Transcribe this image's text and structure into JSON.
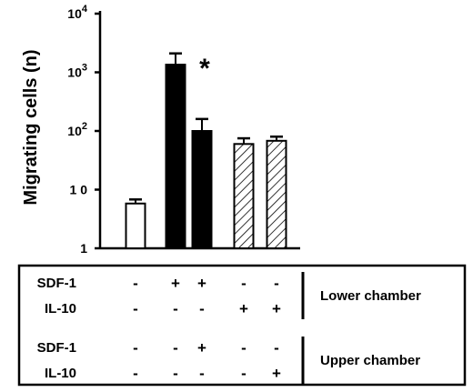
{
  "chart_data": {
    "type": "bar",
    "ylabel": "Migrating cells (n)",
    "yscale": "log",
    "ylim": [
      1,
      10000
    ],
    "yticks": [
      {
        "value": 1,
        "base": "1",
        "exp": ""
      },
      {
        "value": 10,
        "base": "1 0",
        "exp": ""
      },
      {
        "value": 100,
        "base": "10",
        "exp": "2"
      },
      {
        "value": 1000,
        "base": "10",
        "exp": "3"
      },
      {
        "value": 10000,
        "base": "10",
        "exp": "4"
      }
    ],
    "bars": [
      {
        "value": 5.8,
        "error": 6.8,
        "fill": "white"
      },
      {
        "value": 1350,
        "error": 2100,
        "fill": "black"
      },
      {
        "value": 100,
        "error": 160,
        "fill": "black"
      },
      {
        "value": 60,
        "error": 75,
        "fill": "hatched"
      },
      {
        "value": 68,
        "error": 80,
        "fill": "hatched"
      }
    ],
    "annotation": {
      "text": "*",
      "bar_index": 1
    },
    "grid": false
  },
  "conditions_table": {
    "rows": [
      {
        "label": "SDF-1",
        "symbols": [
          "-",
          "+",
          "+",
          "-",
          "-"
        ]
      },
      {
        "label": "IL-10",
        "symbols": [
          "-",
          "-",
          "-",
          "+",
          "+"
        ]
      },
      {
        "label": "SDF-1",
        "symbols": [
          "-",
          "-",
          "+",
          "-",
          "-"
        ]
      },
      {
        "label": "IL-10",
        "symbols": [
          "-",
          "-",
          "-",
          "-",
          "+"
        ]
      }
    ],
    "groups": [
      {
        "label": "Lower chamber",
        "rows": [
          0,
          1
        ]
      },
      {
        "label": "Upper chamber",
        "rows": [
          2,
          3
        ]
      }
    ]
  },
  "colors": {
    "ink": "#000000",
    "paper": "#ffffff"
  }
}
